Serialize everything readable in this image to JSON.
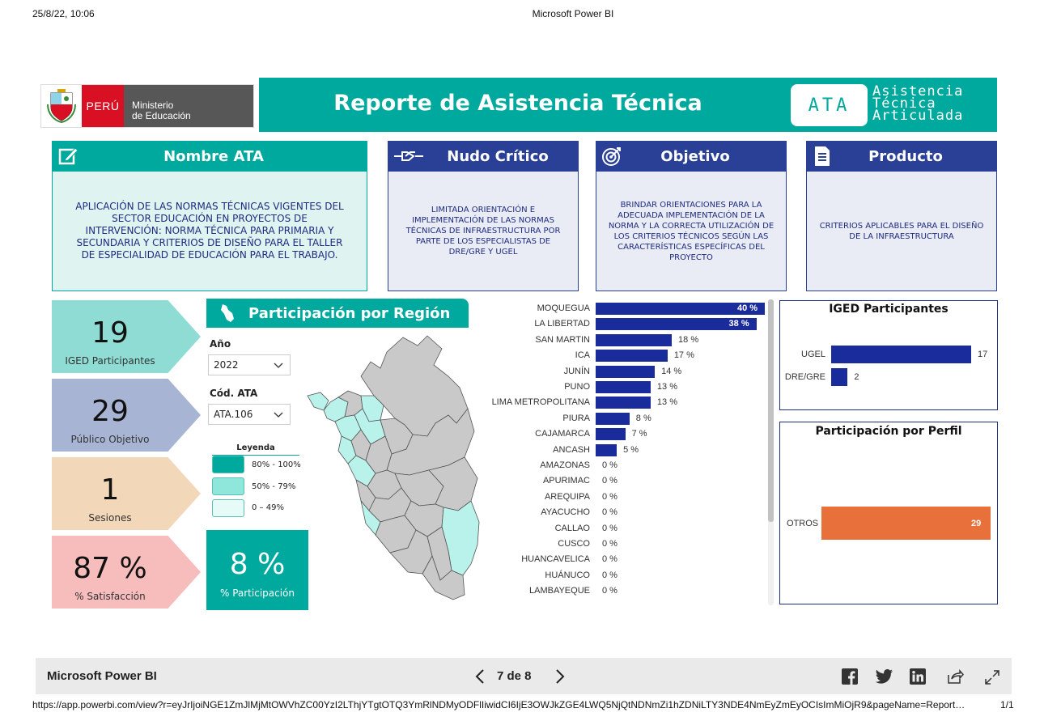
{
  "print_header": {
    "datetime": "25/8/22, 10:06",
    "title": "Microsoft Power BI"
  },
  "logo": {
    "country": "PERÚ",
    "ministry_line1": "Ministerio",
    "ministry_line2": "de Educación"
  },
  "banner": {
    "title": "Reporte de Asistencia Técnica",
    "badge": "ATA",
    "words": [
      "Asistencia",
      "Técnica",
      "Articulada"
    ],
    "color": "#00a99d"
  },
  "cards": [
    {
      "title": "Nombre ATA",
      "icon": "edit-icon",
      "body": "APLICACIÓN DE LAS NORMAS TÉCNICAS VIGENTES DEL SECTOR EDUCACIÓN EN PROYECTOS DE INTERVENCIÓN: NORMA TÉCNICA PARA PRIMARIA Y SECUNDARIA Y CRITERIOS DE DISEÑO PARA EL TALLER DE ESPECIALIDAD DE EDUCACIÓN PARA EL TRABAJO."
    },
    {
      "title": "Nudo Crítico",
      "icon": "handshake-icon",
      "body": "LIMITADA ORIENTACIÓN E IMPLEMENTACIÓN DE LAS NORMAS TÉCNICAS DE INFRAESTRUCTURA POR PARTE DE LOS ESPECIALISTAS DE DRE/GRE Y UGEL"
    },
    {
      "title": "Objetivo",
      "icon": "target-icon",
      "body": "BRINDAR ORIENTACIONES PARA LA ADECUADA IMPLEMENTACIÓN DE LA NORMA Y LA CORRECTA UTILIZACIÓN DE LOS CRITERIOS TÉCNICOS SEGÚN LAS CARACTERÍSTICAS ESPECÍFICAS DEL PROYECTO"
    },
    {
      "title": "Producto",
      "icon": "document-icon",
      "body": "CRITERIOS APLICABLES PARA EL DISEÑO DE LA INFRAESTRUCTURA"
    }
  ],
  "kpis": [
    {
      "value": "19",
      "label": "IGED Participantes",
      "color": "#8fdcd4"
    },
    {
      "value": "29",
      "label": "Público Objetivo",
      "color": "#a8b4d4"
    },
    {
      "value": "1",
      "label": "Sesiones",
      "color": "#f3d7b9"
    },
    {
      "value": "87 %",
      "label": "% Satisfacción",
      "color": "#f7bcbc"
    }
  ],
  "region": {
    "title": "Participación por Región",
    "year_label": "Año",
    "year_value": "2022",
    "code_label": "Cód. ATA",
    "code_value": "ATA.106",
    "legend_title": "Leyenda",
    "legend": [
      {
        "label": "80% - 100%",
        "color": "#00a99d"
      },
      {
        "label": "50% - 79%",
        "color": "#8fe6da"
      },
      {
        "label": "0 – 49%",
        "color": "#e6fbf8"
      }
    ],
    "participation_value": "8 %",
    "participation_label": "% Participación"
  },
  "chart_data": [
    {
      "type": "bar",
      "orientation": "horizontal",
      "categories": [
        "MOQUEGUA",
        "LA LIBERTAD",
        "SAN MARTIN",
        "ICA",
        "JUNÍN",
        "PUNO",
        "LIMA METROPOLITANA",
        "PIURA",
        "CAJAMARCA",
        "ANCASH",
        "AMAZONAS",
        "APURIMAC",
        "AREQUIPA",
        "AYACUCHO",
        "CALLAO",
        "CUSCO",
        "HUANCAVELICA",
        "HUÁNUCO",
        "LAMBAYEQUE"
      ],
      "values": [
        40,
        38,
        18,
        17,
        14,
        13,
        13,
        8,
        7,
        5,
        0,
        0,
        0,
        0,
        0,
        0,
        0,
        0,
        0
      ],
      "value_labels": [
        "40 %",
        "38 %",
        "18 %",
        "17 %",
        "14 %",
        "13 %",
        "13 %",
        "8 %",
        "7 %",
        "5 %",
        "0 %",
        "0 %",
        "0 %",
        "0 %",
        "0 %",
        "0 %",
        "0 %",
        "0 %",
        "0 %"
      ],
      "color": "#1a2c9c"
    },
    {
      "type": "bar",
      "orientation": "horizontal",
      "title": "IGED Participantes",
      "categories": [
        "UGEL",
        "DRE/GRE"
      ],
      "values": [
        17,
        2
      ],
      "color": "#1a2c9c"
    },
    {
      "type": "bar",
      "orientation": "horizontal",
      "title": "Participación por Perfil",
      "categories": [
        "OTROS"
      ],
      "values": [
        29
      ],
      "color": "#e8703a"
    }
  ],
  "footer": {
    "brand": "Microsoft Power BI",
    "page": "7 de 8",
    "url": "https://app.powerbi.com/view?r=eyJrIjoiNGE1ZmJlMjMtOWVhZC00YzI2LThjYTgtOTQ3YmRlNDMyODFlIiwidCI6IjE3OWJkZGE4LWQ5NjQtNDNmZi1hZDNiLTY3NDE4NmEyZmEyOCIsImMiOjR9&pageName=Report…",
    "page_count": "1/1"
  }
}
